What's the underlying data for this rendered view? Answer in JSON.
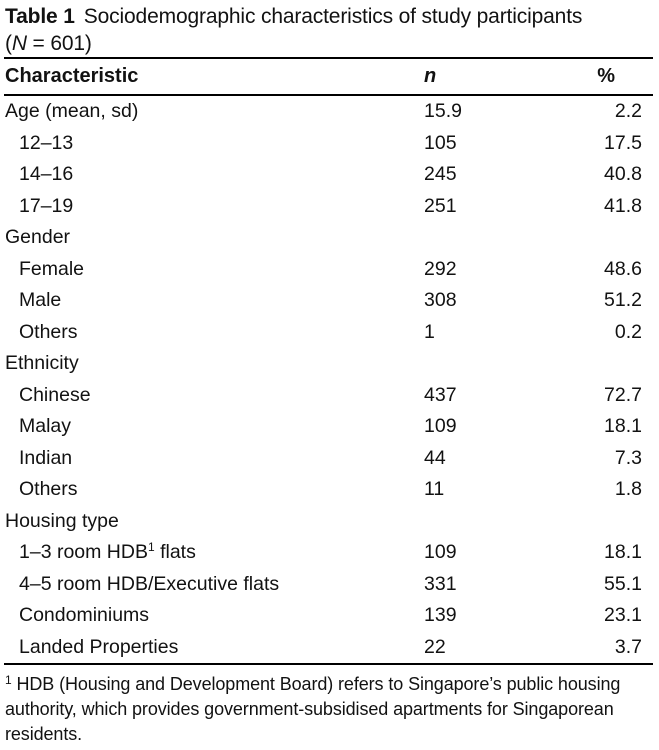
{
  "caption": {
    "label": "Table 1",
    "title": "Sociodemographic characteristics of study participants",
    "sample_open": "(",
    "sample_symbol": "N",
    "sample_rest": " = 601)"
  },
  "header": {
    "characteristic": "Characteristic",
    "n": "n",
    "percent": "%"
  },
  "rows": [
    {
      "label": "Age (mean, sd)",
      "n": "15.9",
      "pct": "2.2",
      "indent": false
    },
    {
      "label": "12–13",
      "n": "105",
      "pct": "17.5",
      "indent": true
    },
    {
      "label": "14–16",
      "n": "245",
      "pct": "40.8",
      "indent": true
    },
    {
      "label": "17–19",
      "n": "251",
      "pct": "41.8",
      "indent": true
    },
    {
      "label": "Gender",
      "n": "",
      "pct": "",
      "indent": false
    },
    {
      "label": "Female",
      "n": "292",
      "pct": "48.6",
      "indent": true
    },
    {
      "label": "Male",
      "n": "308",
      "pct": "51.2",
      "indent": true
    },
    {
      "label": "Others",
      "n": "1",
      "pct": "0.2",
      "indent": true
    },
    {
      "label": "Ethnicity",
      "n": "",
      "pct": "",
      "indent": false
    },
    {
      "label": "Chinese",
      "n": "437",
      "pct": "72.7",
      "indent": true
    },
    {
      "label": "Malay",
      "n": "109",
      "pct": "18.1",
      "indent": true
    },
    {
      "label": "Indian",
      "n": "44",
      "pct": "7.3",
      "indent": true
    },
    {
      "label": "Others",
      "n": "11",
      "pct": "1.8",
      "indent": true
    },
    {
      "label": "Housing type",
      "n": "",
      "pct": "",
      "indent": false
    },
    {
      "label": "1–3 room HDB",
      "sup": "1",
      "label_end": " flats",
      "n": "109",
      "pct": "18.1",
      "indent": true
    },
    {
      "label": "4–5 room HDB/Executive flats",
      "n": "331",
      "pct": "55.1",
      "indent": true
    },
    {
      "label": "Condominiums",
      "n": "139",
      "pct": "23.1",
      "indent": true
    },
    {
      "label": "Landed Properties",
      "n": "22",
      "pct": "3.7",
      "indent": true
    }
  ],
  "footnote": {
    "marker": "1",
    "text": " HDB (Housing and Development Board) refers to Singapore’s public housing authority, which provides government-subsidised apartments for Singaporean residents."
  },
  "colors": {
    "text": "#121212",
    "rule": "#000000",
    "background": "#ffffff"
  }
}
